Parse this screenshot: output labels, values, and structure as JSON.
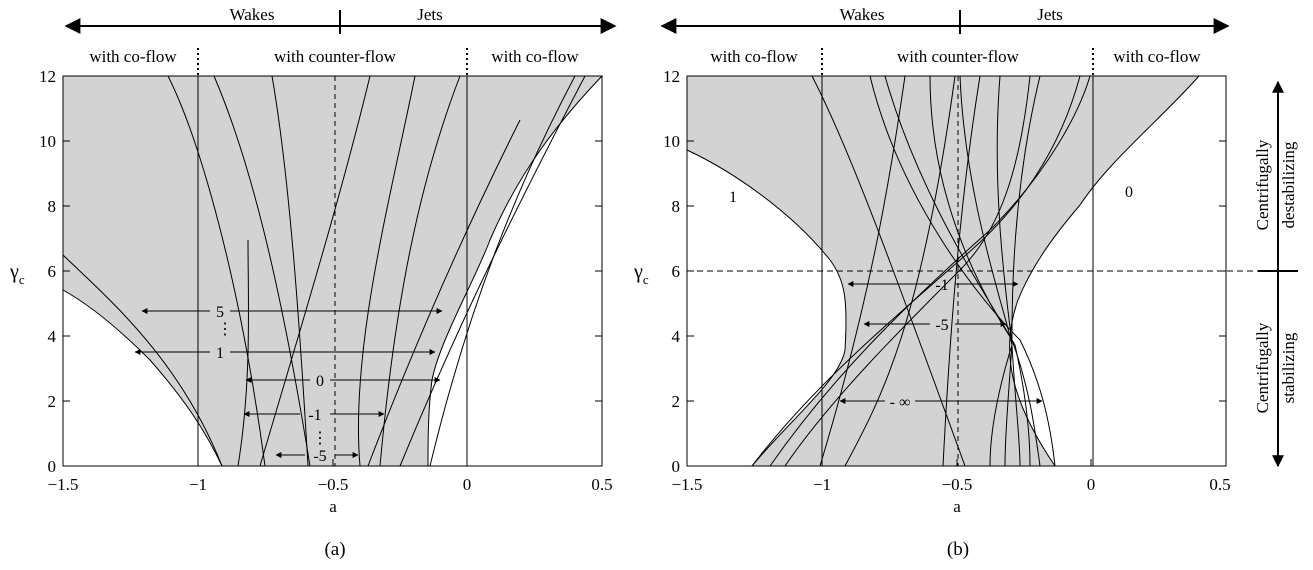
{
  "chart_data": [
    {
      "type": "line",
      "panel": "(a)",
      "xlabel": "a",
      "ylabel": "γ_c",
      "xlim": [
        -1.5,
        0.5
      ],
      "ylim": [
        0,
        12
      ],
      "xticks": [
        "−1.5",
        "−1",
        "−0.5",
        "0",
        "0.5"
      ],
      "yticks": [
        "0",
        "2",
        "4",
        "6",
        "8",
        "10",
        "12"
      ],
      "header": {
        "left": "Wakes",
        "right": "Jets"
      },
      "regions": [
        "with co-flow",
        "with counter-flow",
        "with co-flow"
      ],
      "shaded_region_boundary": {
        "left": [
          {
            "a": -1.5,
            "y": 5.4
          },
          {
            "a": -1.3,
            "y": 4.2
          },
          {
            "a": -1.1,
            "y": 2.8
          },
          {
            "a": -0.98,
            "y": 1.6
          },
          {
            "a": -0.9,
            "y": 0
          }
        ],
        "right": [
          {
            "a": -0.15,
            "y": 0
          },
          {
            "a": -0.12,
            "y": 2.0
          },
          {
            "a": -0.05,
            "y": 3.7
          },
          {
            "a": 0.1,
            "y": 6.8
          },
          {
            "a": 0.3,
            "y": 9.7
          },
          {
            "a": 0.5,
            "y": 12
          }
        ]
      },
      "curve_labels": [
        {
          "label": "5",
          "y": 4.8,
          "a_left": -1.2,
          "a_right": -0.1
        },
        {
          "label": "1",
          "y": 3.6,
          "a_left": -1.24,
          "a_right": -0.13
        },
        {
          "label": "0",
          "y": 2.6,
          "a_left": -0.72,
          "a_right": -0.1
        },
        {
          "label": "-1",
          "y": 1.6,
          "a_left": -0.84,
          "a_right": -0.31
        },
        {
          "label": "-5",
          "y": 0.35,
          "a_left": -0.72,
          "a_right": -0.4
        }
      ]
    },
    {
      "type": "line",
      "panel": "(b)",
      "xlabel": "a",
      "ylabel": "γ_c",
      "xlim": [
        -1.5,
        0.5
      ],
      "ylim": [
        0,
        12
      ],
      "xticks": [
        "−1.5",
        "−1",
        "−0.5",
        "0",
        "0.5"
      ],
      "yticks": [
        "0",
        "2",
        "4",
        "6",
        "8",
        "10",
        "12"
      ],
      "header": {
        "left": "Wakes",
        "right": "Jets"
      },
      "regions": [
        "with co-flow",
        "with counter-flow",
        "with co-flow"
      ],
      "threshold_line_y": 6,
      "side_labels": {
        "top": "Centrifugally destabilizing",
        "bottom": "Centrifugally stabilizing"
      },
      "edge_labels": [
        {
          "label": "1",
          "a": -1.3,
          "y": 8.4
        },
        {
          "label": "0",
          "a": 0.15,
          "y": 8.4
        }
      ],
      "curve_labels": [
        {
          "label": "-1",
          "y": 5.5,
          "a_left": -0.88,
          "a_right": -0.3
        },
        {
          "label": "-5",
          "y": 4.4,
          "a_left": -0.83,
          "a_right": -0.3
        },
        {
          "label": "- ∞",
          "y": 2.0,
          "a_left": -0.9,
          "a_right": -0.2
        }
      ]
    }
  ],
  "captions": {
    "a": "(a)",
    "b": "(b)"
  }
}
